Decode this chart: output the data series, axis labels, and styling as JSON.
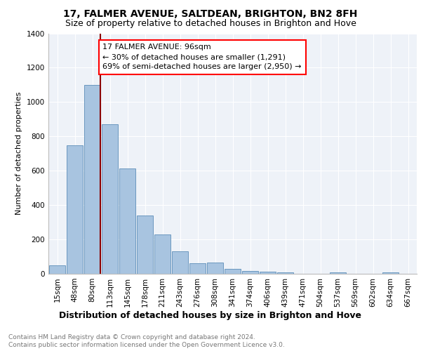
{
  "title1": "17, FALMER AVENUE, SALTDEAN, BRIGHTON, BN2 8FH",
  "title2": "Size of property relative to detached houses in Brighton and Hove",
  "xlabel": "Distribution of detached houses by size in Brighton and Hove",
  "ylabel": "Number of detached properties",
  "categories": [
    "15sqm",
    "48sqm",
    "80sqm",
    "113sqm",
    "145sqm",
    "178sqm",
    "211sqm",
    "243sqm",
    "276sqm",
    "308sqm",
    "341sqm",
    "374sqm",
    "406sqm",
    "439sqm",
    "471sqm",
    "504sqm",
    "537sqm",
    "569sqm",
    "602sqm",
    "634sqm",
    "667sqm"
  ],
  "values": [
    48,
    750,
    1100,
    870,
    615,
    340,
    228,
    130,
    60,
    65,
    27,
    17,
    12,
    10,
    0,
    0,
    7,
    0,
    0,
    10,
    0
  ],
  "bar_color": "#a8c4e0",
  "bar_edge_color": "#5b8db8",
  "annotation_text": "17 FALMER AVENUE: 96sqm\n← 30% of detached houses are smaller (1,291)\n69% of semi-detached houses are larger (2,950) →",
  "annotation_box_color": "white",
  "annotation_box_edge": "red",
  "vline_color": "#8b0000",
  "ylim": [
    0,
    1400
  ],
  "yticks": [
    0,
    200,
    400,
    600,
    800,
    1000,
    1200,
    1400
  ],
  "footer1": "Contains HM Land Registry data © Crown copyright and database right 2024.",
  "footer2": "Contains public sector information licensed under the Open Government Licence v3.0.",
  "bg_color": "#eef2f8",
  "grid_color": "#ffffff",
  "title1_fontsize": 10,
  "title2_fontsize": 9,
  "xlabel_fontsize": 9,
  "ylabel_fontsize": 8,
  "tick_fontsize": 7.5,
  "annotation_fontsize": 8,
  "footer_fontsize": 6.5
}
